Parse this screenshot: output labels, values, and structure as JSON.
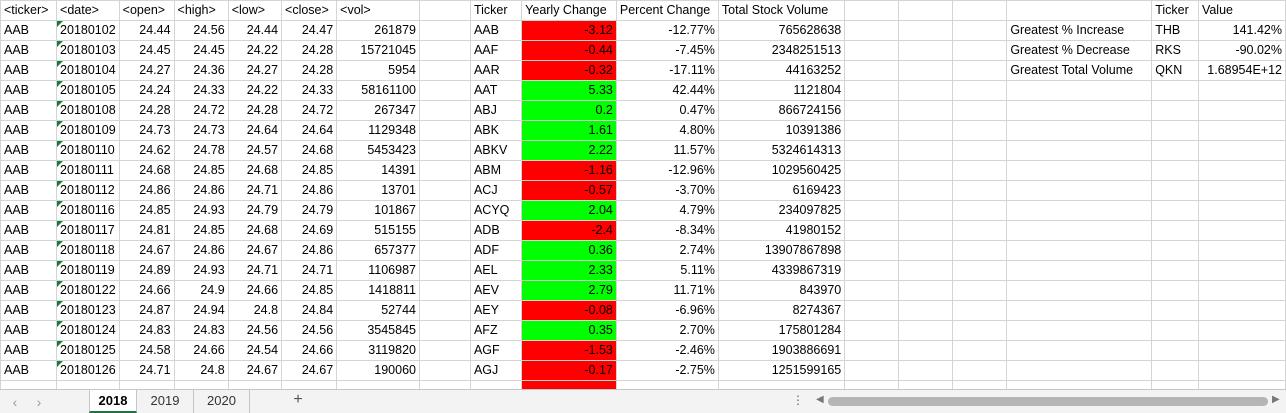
{
  "headers": [
    "<ticker>",
    "<date>",
    "<open>",
    "<high>",
    "<low>",
    "<close>",
    "<vol>",
    "",
    "Ticker",
    "Yearly Change",
    "Percent Change",
    "Total Stock Volume",
    "",
    "",
    "",
    "",
    "Ticker",
    "Value"
  ],
  "raw_rows": [
    [
      "AAB",
      "20180102",
      "24.44",
      "24.56",
      "24.44",
      "24.47",
      "261879"
    ],
    [
      "AAB",
      "20180103",
      "24.45",
      "24.45",
      "24.22",
      "24.28",
      "15721045"
    ],
    [
      "AAB",
      "20180104",
      "24.27",
      "24.36",
      "24.27",
      "24.28",
      "5954"
    ],
    [
      "AAB",
      "20180105",
      "24.24",
      "24.33",
      "24.22",
      "24.33",
      "58161100"
    ],
    [
      "AAB",
      "20180108",
      "24.28",
      "24.72",
      "24.28",
      "24.72",
      "267347"
    ],
    [
      "AAB",
      "20180109",
      "24.73",
      "24.73",
      "24.64",
      "24.64",
      "1129348"
    ],
    [
      "AAB",
      "20180110",
      "24.62",
      "24.78",
      "24.57",
      "24.68",
      "5453423"
    ],
    [
      "AAB",
      "20180111",
      "24.68",
      "24.85",
      "24.68",
      "24.85",
      "14391"
    ],
    [
      "AAB",
      "20180112",
      "24.86",
      "24.86",
      "24.71",
      "24.86",
      "13701"
    ],
    [
      "AAB",
      "20180116",
      "24.85",
      "24.93",
      "24.79",
      "24.79",
      "101867"
    ],
    [
      "AAB",
      "20180117",
      "24.81",
      "24.85",
      "24.68",
      "24.69",
      "515155"
    ],
    [
      "AAB",
      "20180118",
      "24.67",
      "24.86",
      "24.67",
      "24.86",
      "657377"
    ],
    [
      "AAB",
      "20180119",
      "24.89",
      "24.93",
      "24.71",
      "24.71",
      "1106987"
    ],
    [
      "AAB",
      "20180122",
      "24.66",
      "24.9",
      "24.66",
      "24.85",
      "1418811"
    ],
    [
      "AAB",
      "20180123",
      "24.87",
      "24.94",
      "24.8",
      "24.84",
      "52744"
    ],
    [
      "AAB",
      "20180124",
      "24.83",
      "24.83",
      "24.56",
      "24.56",
      "3545845"
    ],
    [
      "AAB",
      "20180125",
      "24.58",
      "24.66",
      "24.54",
      "24.66",
      "3119820"
    ],
    [
      "AAB",
      "20180126",
      "24.71",
      "24.8",
      "24.67",
      "24.67",
      "190060"
    ]
  ],
  "summary_rows": [
    [
      "AAB",
      "-3.12",
      "-12.77%",
      "765628638"
    ],
    [
      "AAF",
      "-0.44",
      "-7.45%",
      "2348251513"
    ],
    [
      "AAR",
      "-0.32",
      "-17.11%",
      "44163252"
    ],
    [
      "AAT",
      "5.33",
      "42.44%",
      "1121804"
    ],
    [
      "ABJ",
      "0.2",
      "0.47%",
      "866724156"
    ],
    [
      "ABK",
      "1.61",
      "4.80%",
      "10391386"
    ],
    [
      "ABKV",
      "2.22",
      "11.57%",
      "5324614313"
    ],
    [
      "ABM",
      "-1.16",
      "-12.96%",
      "1029560425"
    ],
    [
      "ACJ",
      "-0.57",
      "-3.70%",
      "6169423"
    ],
    [
      "ACYQ",
      "2.04",
      "4.79%",
      "234097825"
    ],
    [
      "ADB",
      "-2.4",
      "-8.34%",
      "41980152"
    ],
    [
      "ADF",
      "0.36",
      "2.74%",
      "13907867898"
    ],
    [
      "AEL",
      "2.33",
      "5.11%",
      "4339867319"
    ],
    [
      "AEV",
      "2.79",
      "11.71%",
      "843970"
    ],
    [
      "AEY",
      "-0.08",
      "-6.96%",
      "8274367"
    ],
    [
      "AFZ",
      "0.35",
      "2.70%",
      "175801284"
    ],
    [
      "AGF",
      "-1.53",
      "-2.46%",
      "1903886691"
    ],
    [
      "AGJ",
      "-0.17",
      "-2.75%",
      "1251599165"
    ]
  ],
  "greatest": [
    [
      "Greatest % Increase",
      "THB",
      "141.42%"
    ],
    [
      "Greatest % Decrease",
      "RKS",
      "-90.02%"
    ],
    [
      "Greatest Total Volume",
      "QKN",
      "1.68954E+12"
    ]
  ],
  "tabs": [
    "2018",
    "2019",
    "2020"
  ],
  "active_tab": "2018",
  "colors": {
    "positive": "#00ff00",
    "negative": "#ff0000",
    "accent": "#217346"
  }
}
